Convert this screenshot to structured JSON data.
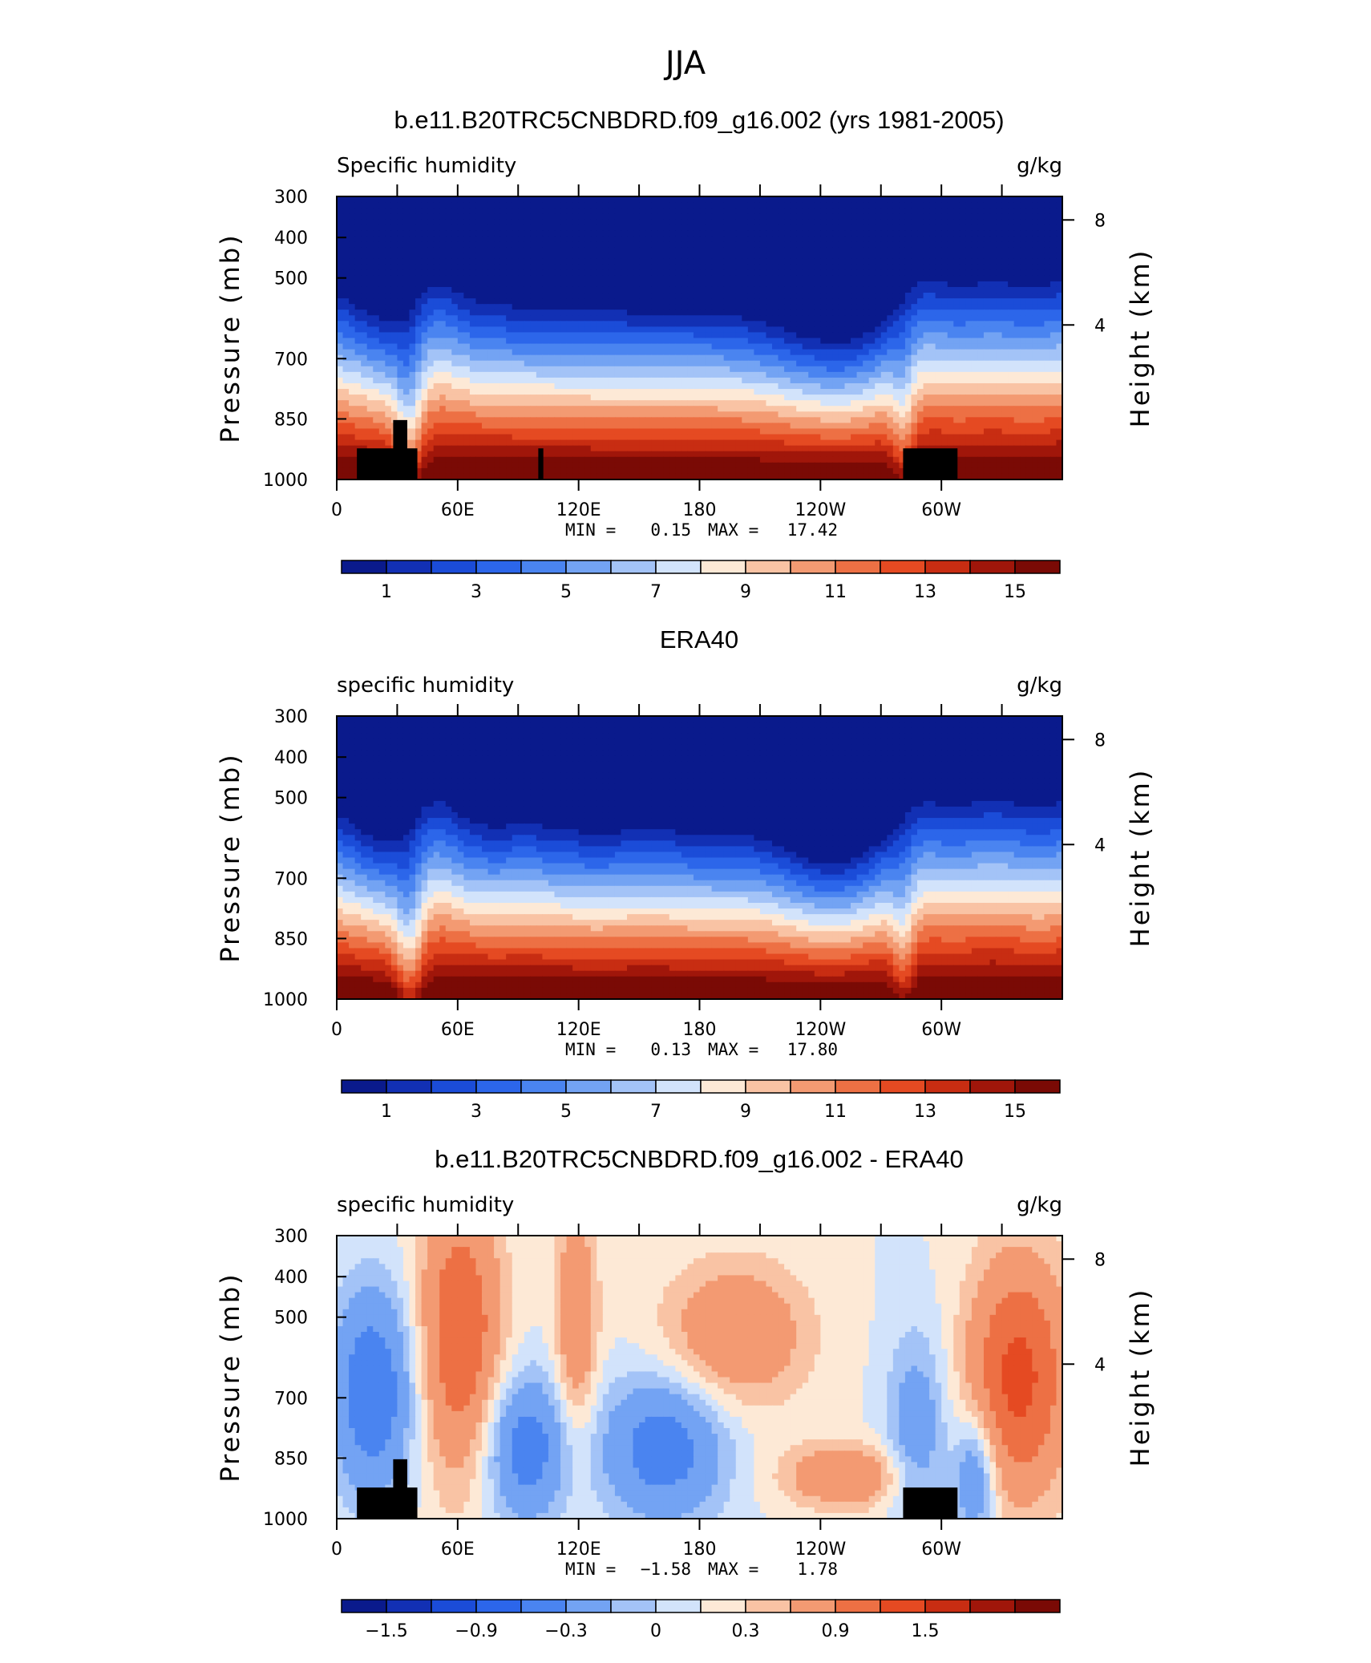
{
  "figure": {
    "title": "JJA"
  },
  "colors": {
    "sequential": [
      "#0a1a8c",
      "#1230b4",
      "#1b4cd8",
      "#2c66ea",
      "#4a84f0",
      "#73a3f3",
      "#a3c3f7",
      "#d2e3fb",
      "#fde9d6",
      "#f9c3a4",
      "#f39a72",
      "#ed7044",
      "#e54a22",
      "#c82d12",
      "#a0160a",
      "#7a0a05"
    ],
    "diverging": [
      "#0a1a8c",
      "#1230b4",
      "#1b4cd8",
      "#2c66ea",
      "#4a84f0",
      "#73a3f3",
      "#a3c3f7",
      "#d2e3fb",
      "#fde9d6",
      "#f9c3a4",
      "#f39a72",
      "#ed7044",
      "#e54a22",
      "#c82d12",
      "#a0160a",
      "#7a0a05"
    ]
  },
  "chart_data": [
    {
      "type": "heatmap",
      "title": "b.e11.B20TRC5CNBDRD.f09_g16.002 (yrs 1981-2005)",
      "left_label": "Specific humidity",
      "right_label": "g/kg",
      "ylabel": "Pressure (mb)",
      "y2label": "Height (km)",
      "xticks": [
        "0",
        "60E",
        "120E",
        "180",
        "120W",
        "60W"
      ],
      "yticks": [
        "300",
        "400",
        "500",
        "700",
        "850",
        "1000"
      ],
      "y2ticks": [
        "8",
        "4"
      ],
      "xlim": [
        0,
        360
      ],
      "ylim": [
        1000,
        300
      ],
      "min_label": "MIN =",
      "min": "0.15",
      "max_label": "MAX =",
      "max": "17.42",
      "colorbar_labels": [
        "1",
        "3",
        "5",
        "7",
        "9",
        "11",
        "13",
        "15"
      ],
      "field": "model",
      "masked": true
    },
    {
      "type": "heatmap",
      "title": "ERA40",
      "left_label": "specific humidity",
      "right_label": "g/kg",
      "ylabel": "Pressure (mb)",
      "y2label": "Height (km)",
      "xticks": [
        "0",
        "60E",
        "120E",
        "180",
        "120W",
        "60W"
      ],
      "yticks": [
        "300",
        "400",
        "500",
        "700",
        "850",
        "1000"
      ],
      "y2ticks": [
        "8",
        "4"
      ],
      "xlim": [
        0,
        360
      ],
      "ylim": [
        1000,
        300
      ],
      "min_label": "MIN =",
      "min": "0.13",
      "max_label": "MAX =",
      "max": "17.80",
      "colorbar_labels": [
        "1",
        "3",
        "5",
        "7",
        "9",
        "11",
        "13",
        "15"
      ],
      "field": "obs",
      "masked": false
    },
    {
      "type": "heatmap",
      "title": "b.e11.B20TRC5CNBDRD.f09_g16.002 - ERA40",
      "left_label": "specific humidity",
      "right_label": "g/kg",
      "ylabel": "Pressure (mb)",
      "y2label": "Height (km)",
      "xticks": [
        "0",
        "60E",
        "120E",
        "180",
        "120W",
        "60W"
      ],
      "yticks": [
        "300",
        "400",
        "500",
        "700",
        "850",
        "1000"
      ],
      "y2ticks": [
        "8",
        "4"
      ],
      "xlim": [
        0,
        360
      ],
      "ylim": [
        1000,
        300
      ],
      "min_label": "MIN =",
      "min": "−1.58",
      "max_label": "MAX =",
      "max": "1.78",
      "colorbar_labels": [
        "−1.5",
        "−0.9",
        "−0.3",
        "0",
        "0.3",
        "0.9",
        "1.5"
      ],
      "field": "diff",
      "masked": true
    }
  ]
}
